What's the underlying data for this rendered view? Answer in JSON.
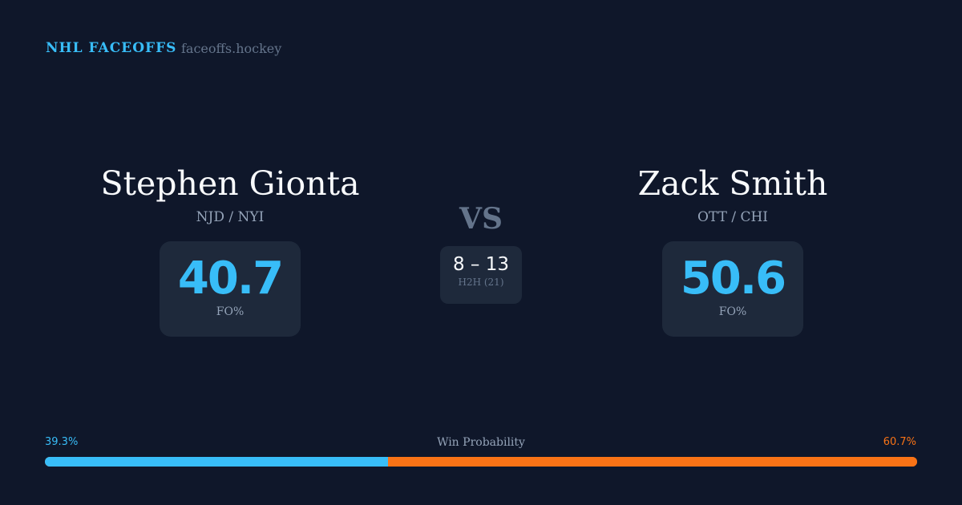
{
  "header": {
    "brand": "NHL FACEOFFS",
    "domain": "faceoffs.hockey"
  },
  "player1": {
    "name": "Stephen Gionta",
    "teams": "NJD / NYI",
    "fo_pct": "40.7",
    "fo_label": "FO%"
  },
  "player2": {
    "name": "Zack Smith",
    "teams": "OTT / CHI",
    "fo_pct": "50.6",
    "fo_label": "FO%"
  },
  "vs": "VS",
  "h2h": {
    "score": "8 – 13",
    "label": "H2H (21)"
  },
  "win_probability": {
    "title": "Win Probability",
    "left": "39.3%",
    "right": "60.7%",
    "left_value": 39.3,
    "colors": {
      "left": "#38bdf8",
      "right": "#f97316"
    }
  }
}
